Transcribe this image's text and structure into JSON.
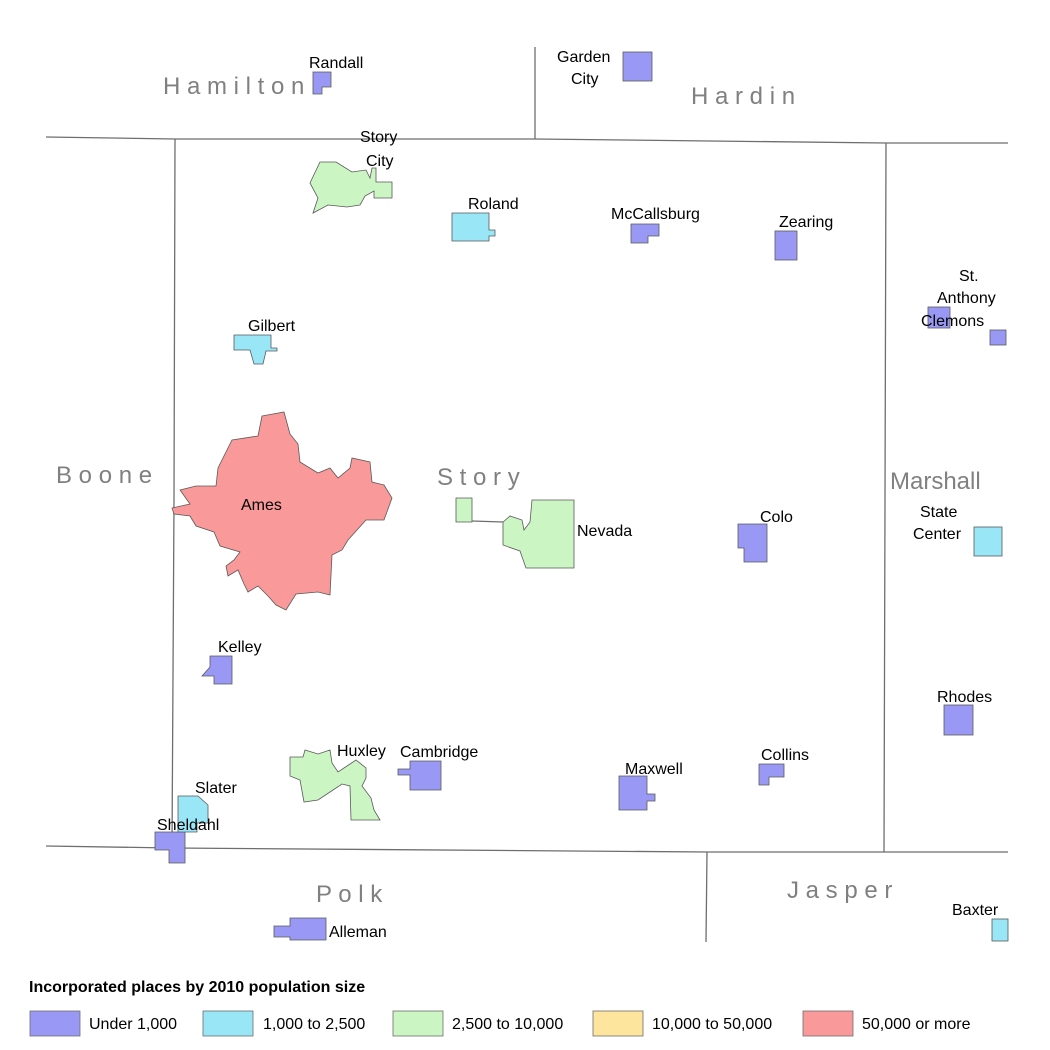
{
  "counties": {
    "hamilton": "H a m i l t o n",
    "hardin": "H a r d i n",
    "boone": "B o o n e",
    "story": "S t o r y",
    "marshall": "Marshall",
    "polk": "P o l k",
    "jasper": "J a s p e r"
  },
  "places": {
    "randall": "Randall",
    "garden_city_1": "Garden",
    "garden_city_2": "City",
    "story_city_1": "Story",
    "story_city_2": "City",
    "roland": "Roland",
    "mccallsburg": "McCallsburg",
    "zearing": "Zearing",
    "st_anthony_1": "St.",
    "st_anthony_2": "Anthony",
    "clemons": "Clemons",
    "gilbert": "Gilbert",
    "ames": "Ames",
    "nevada": "Nevada",
    "colo": "Colo",
    "state_center_1": "State",
    "state_center_2": "Center",
    "kelley": "Kelley",
    "rhodes": "Rhodes",
    "huxley": "Huxley",
    "cambridge": "Cambridge",
    "maxwell": "Maxwell",
    "collins": "Collins",
    "slater": "Slater",
    "sheldahl": "Sheldahl",
    "alleman": "Alleman",
    "baxter": "Baxter"
  },
  "legend": {
    "title": "Incorporated places by 2010 population size",
    "items": [
      {
        "label": "Under 1,000",
        "color": "#9999f5"
      },
      {
        "label": "1,000 to 2,500",
        "color": "#99e6f7"
      },
      {
        "label": "2,500 to 10,000",
        "color": "#ccf5c4"
      },
      {
        "label": "10,000 to 50,000",
        "color": "#fde59d"
      },
      {
        "label": "50,000 or more",
        "color": "#f99999"
      }
    ]
  },
  "colors": {
    "under_1000": "#9999f5",
    "1000_2500": "#99e6f7",
    "2500_10000": "#ccf5c4",
    "10000_50000": "#fde59d",
    "50000_plus": "#f99999"
  }
}
